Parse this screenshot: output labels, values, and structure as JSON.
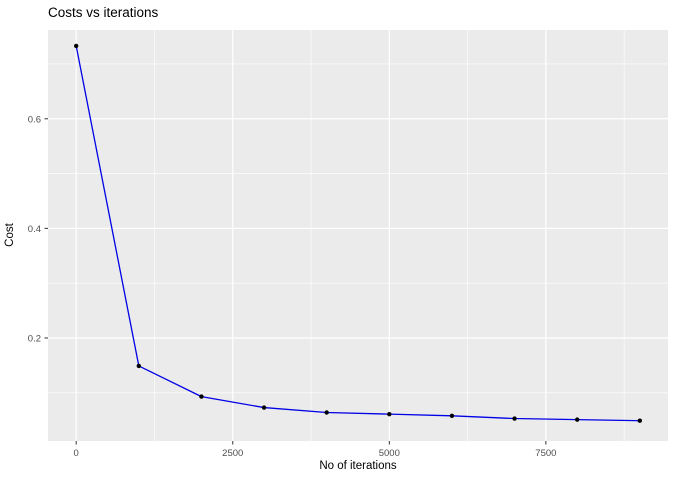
{
  "chart_data": {
    "type": "line",
    "title": "Costs vs iterations",
    "xlabel": "No of iterations",
    "ylabel": "Cost",
    "x": [
      0,
      1000,
      2000,
      3000,
      4000,
      5000,
      6000,
      7000,
      8000,
      9000
    ],
    "series": [
      {
        "name": "cost",
        "values": [
          0.733,
          0.149,
          0.093,
          0.073,
          0.064,
          0.061,
          0.058,
          0.053,
          0.051,
          0.049
        ]
      }
    ],
    "xlim": [
      -450,
      9450
    ],
    "ylim": [
      0.012,
      0.762
    ],
    "x_tick_values": [
      0,
      2500,
      5000,
      7500
    ],
    "x_tick_labels": [
      "0",
      "2500",
      "5000",
      "7500"
    ],
    "x_minor_tick_values": [
      1250,
      3750,
      6250,
      8750
    ],
    "y_tick_values": [
      0.2,
      0.4,
      0.6
    ],
    "y_tick_labels": [
      "0.2",
      "0.4",
      "0.6"
    ],
    "y_minor_tick_values": [
      0.1,
      0.3,
      0.5,
      0.7
    ],
    "grid": true,
    "legend_position": "none",
    "style": "ggplot2",
    "colors": {
      "line": "#0000E6",
      "point": "#000000",
      "panel_bg": "#EBEBEB",
      "grid_major": "#FFFFFF",
      "grid_minor": "#FFFFFF",
      "tick_mark": "#333333",
      "tick_text": "#4D4D4D",
      "axis_title_text": "#000000",
      "title_text": "#000000",
      "outer_bg": "#FFFFFF"
    }
  }
}
